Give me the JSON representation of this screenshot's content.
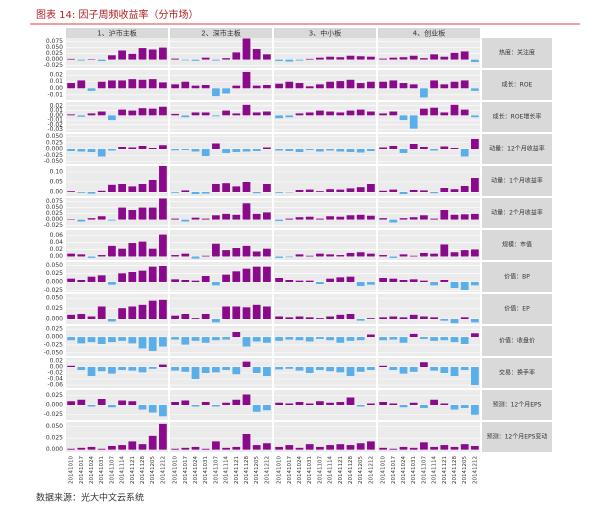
{
  "chart_data": {
    "type": "bar",
    "title": "图表 14: 因子周频收益率（分市场）",
    "source": "数据来源：光大中文云系统",
    "pos_color": "#8b0a8b",
    "neg_color": "#5aaeea",
    "grid": true,
    "columns": [
      "1、沪市主板",
      "2、深市主板",
      "3、中小板",
      "4、创业板"
    ],
    "categories": [
      "20141010",
      "20141017",
      "20141024",
      "20141031",
      "20141107",
      "20141114",
      "20141121",
      "20141128",
      "20141205",
      "20141212"
    ],
    "rows": [
      {
        "name": "热度：关注度",
        "ylim": [
          -0.035,
          0.09
        ],
        "yticks": [
          0.075,
          {
            "value": 0.05,
            "label": "0.050"
          },
          0.025,
          {
            "value": 0,
            "label": "0.000"
          },
          -0.025
        ],
        "values": [
          [
            0.003,
            -0.004,
            0.002,
            -0.006,
            0.018,
            0.038,
            0.024,
            0.048,
            0.042,
            0.05
          ],
          [
            0.004,
            -0.003,
            -0.005,
            0.008,
            -0.004,
            0.006,
            0.03,
            0.088,
            0.044,
            0.022
          ],
          [
            -0.006,
            -0.008,
            -0.004,
            0.003,
            0.008,
            0.012,
            0.01,
            0.016,
            0.014,
            0.012
          ],
          [
            0.004,
            0.008,
            0.01,
            0.016,
            0.006,
            0.022,
            0.012,
            0.028,
            0.034,
            -0.01
          ]
        ]
      },
      {
        "name": "成长：ROE",
        "ylim": [
          -0.018,
          0.028
        ],
        "yticks": [
          0.02,
          0.01,
          {
            "value": 0,
            "label": "0.00"
          },
          -0.01
        ],
        "values": [
          [
            0.008,
            0.012,
            -0.004,
            0.01,
            0.012,
            0.012,
            0.014,
            0.013,
            0.014,
            0.009
          ],
          [
            0.006,
            0.01,
            0.004,
            0.005,
            -0.012,
            -0.008,
            0.004,
            0.025,
            0.004,
            0.005
          ],
          [
            0.007,
            0.01,
            0.008,
            0.003,
            0.006,
            0.01,
            0.011,
            0.013,
            0.008,
            0.01
          ],
          [
            0.01,
            0.012,
            0.008,
            0.006,
            -0.014,
            0.012,
            0.006,
            0.01,
            0.012,
            -0.004
          ]
        ]
      },
      {
        "name": "成长：ROE增长率",
        "ylim": [
          -0.035,
          0.028
        ],
        "yticks": [
          0.02,
          0.01,
          {
            "value": 0,
            "label": "0.00"
          },
          -0.01,
          -0.02,
          -0.03
        ],
        "values": [
          [
            0.002,
            -0.003,
            0.004,
            0.008,
            -0.01,
            0.012,
            0.01,
            0.015,
            0.014,
            0.018
          ],
          [
            0.003,
            -0.004,
            0.006,
            0.006,
            -0.002,
            0.01,
            0.004,
            0.022,
            0.006,
            0.008
          ],
          [
            -0.006,
            -0.004,
            0.004,
            0.006,
            0.01,
            0.008,
            0.006,
            0.01,
            0.012,
            0.008
          ],
          [
            0.004,
            0.008,
            -0.01,
            -0.028,
            0.014,
            0.016,
            0.006,
            0.022,
            0.012,
            -0.004
          ]
        ]
      },
      {
        "name": "动量：12个月收益率",
        "ylim": [
          -0.06,
          0.06
        ],
        "yticks": [
          {
            "value": 0.05,
            "label": "0.050"
          },
          0.025,
          {
            "value": 0,
            "label": "0.000"
          },
          -0.025,
          {
            "value": -0.05,
            "label": "-0.050"
          }
        ],
        "values": [
          [
            -0.008,
            -0.01,
            -0.012,
            -0.03,
            -0.006,
            0.008,
            0.006,
            0.012,
            0.004,
            0.015
          ],
          [
            -0.005,
            -0.004,
            -0.01,
            -0.028,
            0.022,
            -0.016,
            -0.012,
            -0.01,
            -0.008,
            0.006
          ],
          [
            -0.006,
            -0.008,
            -0.012,
            -0.004,
            -0.01,
            -0.006,
            -0.01,
            -0.012,
            -0.014,
            -0.008
          ],
          [
            0.006,
            0.012,
            -0.016,
            0.02,
            0.008,
            -0.006,
            0.01,
            0.004,
            -0.03,
            0.04
          ]
        ]
      },
      {
        "name": "动量：1个月收益率",
        "ylim": [
          -0.02,
          0.13
        ],
        "yticks": [
          {
            "value": 0.1,
            "label": "0.10"
          },
          0.05,
          {
            "value": 0,
            "label": "0.00"
          }
        ],
        "values": [
          [
            0.004,
            -0.004,
            -0.008,
            0.006,
            0.036,
            0.04,
            0.028,
            0.04,
            0.06,
            0.13
          ],
          [
            -0.004,
            0.008,
            -0.01,
            -0.008,
            0.04,
            0.044,
            0.028,
            0.05,
            -0.006,
            0.04
          ],
          [
            -0.004,
            -0.002,
            0.01,
            0.012,
            0.004,
            0.014,
            0.012,
            0.018,
            0.024,
            0.04
          ],
          [
            0.006,
            0.012,
            -0.01,
            0.01,
            0.008,
            -0.006,
            0.02,
            0.014,
            0.03,
            0.07
          ]
        ]
      },
      {
        "name": "动量：2个月收益率",
        "ylim": [
          -0.035,
          0.09
        ],
        "yticks": [
          0.075,
          {
            "value": 0.05,
            "label": "0.050"
          },
          0.025,
          {
            "value": 0,
            "label": "0.000"
          },
          -0.025
        ],
        "values": [
          [
            0.002,
            -0.008,
            0.006,
            0.014,
            -0.004,
            0.05,
            0.04,
            0.05,
            0.05,
            0.088
          ],
          [
            0.004,
            -0.008,
            0.008,
            0.004,
            0.018,
            0.024,
            0.02,
            0.068,
            0.024,
            0.03
          ],
          [
            -0.006,
            0.004,
            0.01,
            0.012,
            0.004,
            0.014,
            0.012,
            0.018,
            0.02,
            0.016
          ],
          [
            0.006,
            -0.012,
            0.006,
            0.01,
            0.018,
            0.004,
            0.04,
            0.02,
            0.022,
            0.024
          ]
        ]
      },
      {
        "name": "规模：市值",
        "ylim": [
          -0.01,
          0.075
        ],
        "yticks": [
          0.06,
          0.04,
          0.02,
          {
            "value": 0,
            "label": "0.00"
          }
        ],
        "values": [
          [
            0.008,
            0.006,
            -0.004,
            0.004,
            0.03,
            0.022,
            0.038,
            0.042,
            0.022,
            0.062
          ],
          [
            0.004,
            0.008,
            -0.006,
            0.002,
            0.036,
            0.018,
            0.024,
            0.03,
            0.014,
            0.022
          ],
          [
            -0.004,
            -0.002,
            0.006,
            0.002,
            0.008,
            0.006,
            0.004,
            0.01,
            0.012,
            0.008
          ],
          [
            0.004,
            -0.004,
            0.006,
            0.002,
            0.01,
            0.008,
            0.034,
            0.012,
            0.018,
            0.02
          ]
        ]
      },
      {
        "name": "价值：BP",
        "ylim": [
          -0.03,
          0.06
        ],
        "yticks": [
          {
            "value": 0.05,
            "label": "0.050"
          },
          0.025,
          {
            "value": 0,
            "label": "0.000"
          },
          -0.025
        ],
        "values": [
          [
            0.01,
            0.006,
            0.016,
            0.02,
            -0.008,
            0.026,
            0.03,
            0.034,
            0.046,
            0.048
          ],
          [
            0.008,
            0.006,
            0.004,
            0.018,
            -0.01,
            0.022,
            0.032,
            0.04,
            0.046,
            0.046
          ],
          [
            0.012,
            0.006,
            0.004,
            0.004,
            -0.006,
            0.01,
            0.014,
            0.016,
            -0.012,
            -0.008
          ],
          [
            0.012,
            0.01,
            0.006,
            0.008,
            0.004,
            -0.01,
            0.006,
            -0.018,
            -0.024,
            -0.01
          ]
        ]
      },
      {
        "name": "价值：EP",
        "ylim": [
          -0.012,
          0.06
        ],
        "yticks": [
          {
            "value": 0.05,
            "label": "0.050"
          },
          0.025,
          {
            "value": 0,
            "label": "0.000"
          }
        ],
        "values": [
          [
            0.01,
            0.012,
            0.006,
            0.03,
            -0.006,
            0.026,
            0.03,
            0.034,
            0.044,
            0.046
          ],
          [
            0.008,
            0.012,
            0.002,
            0.012,
            -0.008,
            0.03,
            0.03,
            0.028,
            0.034,
            0.03
          ],
          [
            0.006,
            0.004,
            0.006,
            0.004,
            0.002,
            0.006,
            0.01,
            0.012,
            -0.004,
            0.002
          ],
          [
            0.004,
            0.006,
            0.004,
            0.01,
            0.006,
            0.004,
            -0.004,
            -0.01,
            0.004,
            -0.008
          ]
        ]
      },
      {
        "name": "价值：收盘价",
        "ylim": [
          -0.06,
          0.035
        ],
        "yticks": [
          0.025,
          {
            "value": 0,
            "label": "0.000"
          },
          -0.025,
          {
            "value": -0.05,
            "label": "-0.050"
          }
        ],
        "values": [
          [
            -0.01,
            -0.02,
            -0.016,
            -0.022,
            -0.016,
            -0.012,
            -0.02,
            -0.036,
            -0.044,
            -0.03
          ],
          [
            -0.008,
            -0.024,
            -0.012,
            -0.018,
            -0.01,
            -0.008,
            0.016,
            -0.03,
            -0.014,
            -0.018
          ],
          [
            -0.012,
            -0.008,
            -0.01,
            -0.014,
            -0.006,
            -0.01,
            -0.018,
            -0.012,
            -0.01,
            0.008
          ],
          [
            -0.01,
            -0.008,
            -0.018,
            0.01,
            -0.006,
            -0.012,
            -0.01,
            -0.016,
            -0.022,
            0.012
          ]
        ]
      },
      {
        "name": "交易：换手率",
        "ylim": [
          -0.07,
          0.03
        ],
        "yticks": [
          0.02,
          {
            "value": 0,
            "label": "0.00"
          },
          -0.02,
          -0.04,
          -0.06
        ],
        "values": [
          [
            0.004,
            -0.01,
            -0.03,
            -0.014,
            -0.022,
            -0.01,
            -0.012,
            -0.018,
            -0.006,
            0.008
          ],
          [
            -0.012,
            -0.016,
            -0.04,
            -0.02,
            -0.018,
            -0.01,
            -0.024,
            0.018,
            -0.02,
            -0.03
          ],
          [
            -0.008,
            -0.006,
            -0.012,
            -0.02,
            -0.01,
            -0.014,
            -0.018,
            -0.03,
            -0.016,
            -0.01
          ],
          [
            0.004,
            -0.01,
            -0.022,
            -0.016,
            0.016,
            -0.012,
            -0.02,
            -0.03,
            -0.01,
            -0.06
          ]
        ]
      },
      {
        "name": "预测：12个月EPS",
        "ylim": [
          -0.04,
          0.04
        ],
        "yticks": [
          0.025,
          {
            "value": 0,
            "label": "0.000"
          },
          -0.025
        ],
        "values": [
          [
            0.01,
            0.014,
            -0.004,
            0.016,
            -0.006,
            0.012,
            0.01,
            -0.012,
            -0.02,
            -0.03
          ],
          [
            0.008,
            0.012,
            -0.004,
            0.008,
            -0.004,
            0.006,
            0.014,
            0.028,
            -0.018,
            -0.014
          ],
          [
            0.006,
            0.004,
            0.008,
            0.004,
            0.01,
            0.006,
            0.008,
            0.02,
            -0.004,
            0.004
          ],
          [
            0.008,
            0.004,
            -0.006,
            0.006,
            -0.008,
            0.014,
            0.004,
            -0.012,
            -0.008,
            -0.026
          ]
        ]
      },
      {
        "name": "预测：12个月EPS变动",
        "ylim": [
          -0.005,
          0.06
        ],
        "yticks": [
          {
            "value": 0.05,
            "label": "0.050"
          },
          0.025,
          {
            "value": 0,
            "label": "0.000"
          }
        ],
        "values": [
          [
            0.002,
            0.004,
            0.006,
            0.002,
            0.008,
            0.01,
            0.018,
            0.012,
            0.03,
            0.056
          ],
          [
            0.002,
            0.004,
            0.006,
            0.002,
            0.018,
            0.004,
            0.006,
            0.034,
            0.01,
            0.014
          ],
          [
            0.006,
            0.01,
            0.004,
            0.012,
            0.006,
            0.01,
            0.012,
            0.01,
            0.014,
            0.018
          ],
          [
            0.004,
            0.002,
            0.006,
            0.004,
            0.016,
            0.006,
            0.01,
            0.006,
            0.012,
            0.008
          ]
        ]
      }
    ]
  }
}
